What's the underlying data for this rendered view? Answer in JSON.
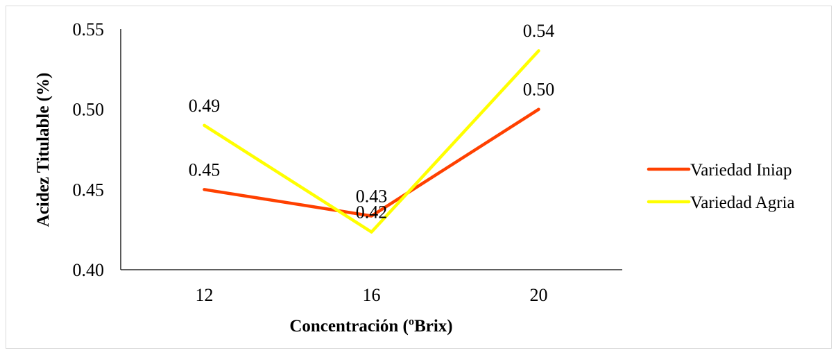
{
  "chart_data": {
    "type": "line",
    "categories": [
      "12",
      "16",
      "20"
    ],
    "series": [
      {
        "name": "Variedad Iniap",
        "values": [
          0.45,
          0.4335,
          0.5
        ],
        "labels": [
          "0.45",
          "0.43",
          "0.50"
        ],
        "color": "#ff4000"
      },
      {
        "name": "Variedad Agria",
        "values": [
          0.49,
          0.4235,
          0.5365
        ],
        "labels": [
          "0.49",
          "0.42",
          "0.54"
        ],
        "color": "#ffff00"
      }
    ],
    "title": "",
    "xlabel": "Concentración (ºBrix)",
    "ylabel": "Acidez Titulable (%)",
    "ylim": [
      0.4,
      0.55
    ],
    "yticks": [
      "0.40",
      "0.45",
      "0.50",
      "0.55"
    ],
    "grid": false,
    "legend_position": "right"
  }
}
